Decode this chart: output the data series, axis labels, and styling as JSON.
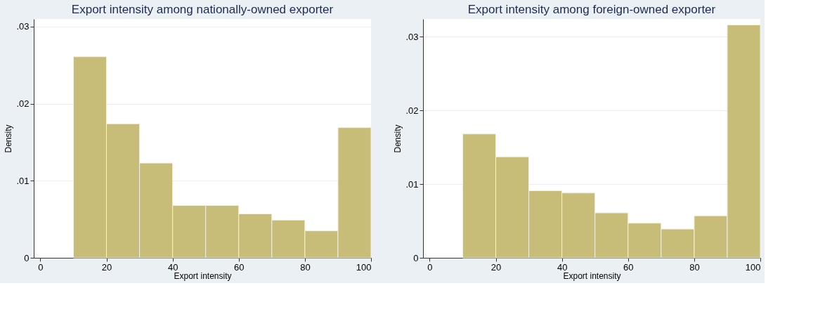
{
  "chart_data": [
    {
      "type": "histogram",
      "title": "Export intensity among nationally-owned exporter",
      "xlabel": "Export intensity",
      "ylabel": "Density",
      "bins": [
        10,
        20,
        30,
        40,
        50,
        60,
        70,
        80,
        90,
        100
      ],
      "values": [
        0.0261,
        0.0174,
        0.0123,
        0.0068,
        0.0068,
        0.0057,
        0.0049,
        0.0035,
        0.0169
      ],
      "color": "#c8bd78",
      "xlim": [
        -2,
        100
      ],
      "xticks": [
        0,
        20,
        40,
        60,
        80,
        100
      ],
      "ylim": [
        0,
        0.031
      ],
      "yticks": [
        0,
        {
          "value": 0.01,
          "label": ".01"
        },
        {
          "value": 0.02,
          "label": ".02"
        },
        {
          "value": 0.03,
          "label": ".03"
        }
      ],
      "grid": "y"
    },
    {
      "type": "histogram",
      "title": "Export intensity among foreign-owned exporter",
      "xlabel": "Export intensity",
      "ylabel": "Density",
      "bins": [
        10,
        20,
        30,
        40,
        50,
        60,
        70,
        80,
        90,
        100
      ],
      "values": [
        0.0168,
        0.0137,
        0.0091,
        0.0088,
        0.0061,
        0.0047,
        0.0039,
        0.0057,
        0.0316
      ],
      "color": "#c8bd78",
      "xlim": [
        -2,
        100
      ],
      "xticks": [
        0,
        20,
        40,
        60,
        80,
        100
      ],
      "ylim": [
        0,
        0.0324
      ],
      "yticks": [
        0,
        {
          "value": 0.01,
          "label": ".01"
        },
        {
          "value": 0.02,
          "label": ".02"
        },
        {
          "value": 0.03,
          "label": ".03"
        }
      ],
      "grid": "y"
    }
  ]
}
